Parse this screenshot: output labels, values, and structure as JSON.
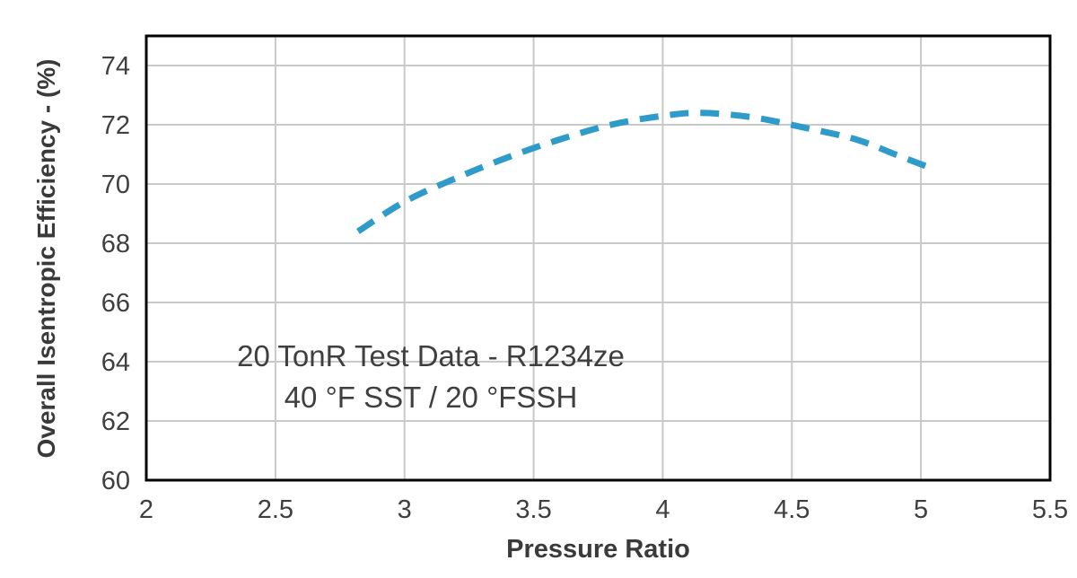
{
  "chart_data": {
    "type": "line",
    "title": "",
    "xlabel": "Pressure Ratio",
    "ylabel": "Overall Isentropic Efficiency - (%)",
    "xlim": [
      2,
      5.5
    ],
    "ylim": [
      60,
      75
    ],
    "x_ticks": [
      2,
      2.5,
      3,
      3.5,
      4,
      4.5,
      5,
      5.5
    ],
    "y_ticks": [
      60,
      62,
      64,
      66,
      68,
      70,
      72,
      74
    ],
    "grid": true,
    "legend": "none",
    "annotation": {
      "line1": "20 TonR Test Data - R1234ze",
      "line2": "40 °F SST / 20 °FSSH"
    },
    "series": [
      {
        "name": "Overall Isentropic Efficiency",
        "color": "#2e9bc9",
        "style": "dashed",
        "line_width": 7,
        "points": [
          {
            "x": 2.82,
            "y": 68.4
          },
          {
            "x": 3.0,
            "y": 69.4
          },
          {
            "x": 3.2,
            "y": 70.2
          },
          {
            "x": 3.4,
            "y": 70.9
          },
          {
            "x": 3.6,
            "y": 71.5
          },
          {
            "x": 3.8,
            "y": 72.0
          },
          {
            "x": 4.0,
            "y": 72.3
          },
          {
            "x": 4.15,
            "y": 72.4
          },
          {
            "x": 4.35,
            "y": 72.25
          },
          {
            "x": 4.55,
            "y": 71.9
          },
          {
            "x": 4.75,
            "y": 71.5
          },
          {
            "x": 4.9,
            "y": 71.0
          },
          {
            "x": 5.02,
            "y": 70.6
          }
        ]
      }
    ]
  }
}
